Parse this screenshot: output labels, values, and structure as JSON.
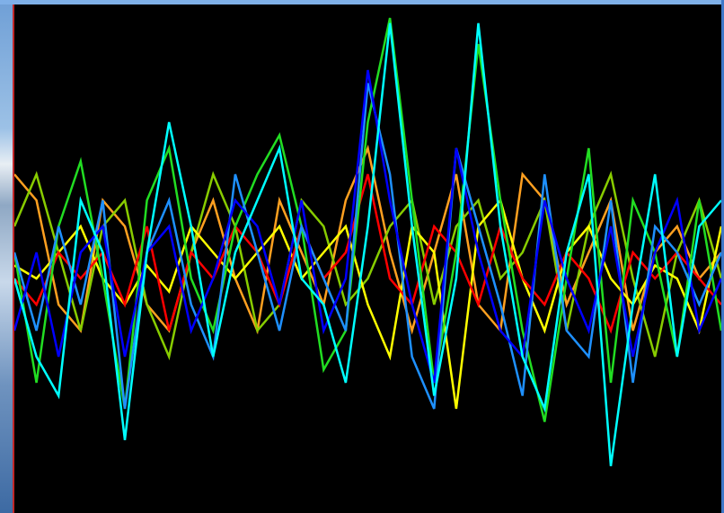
{
  "chart_data": {
    "type": "line",
    "ylim": [
      -1,
      1
    ],
    "series": [
      {
        "color": "#ffa020",
        "values": [
          0.4,
          0.3,
          -0.1,
          -0.2,
          0.3,
          0.2,
          -0.1,
          -0.2,
          0.1,
          0.3,
          0,
          -0.2,
          0.3,
          0.1,
          -0.1,
          0.3,
          0.5,
          0.1,
          -0.2,
          0.1,
          0.4,
          -0.1,
          -0.2,
          0.4,
          0.3,
          -0.1,
          0.1,
          0.3,
          -0.2,
          0.1,
          0.2,
          0,
          0.1
        ]
      },
      {
        "color": "#88cc00",
        "values": [
          0.2,
          0.4,
          0.1,
          -0.2,
          0.2,
          0.3,
          -0.1,
          -0.3,
          0.1,
          0.4,
          0.2,
          -0.2,
          -0.1,
          0.3,
          0.2,
          -0.1,
          0,
          0.2,
          0.3,
          -0.1,
          0.2,
          0.3,
          0,
          0.1,
          0.3,
          -0.2,
          0.2,
          0.4,
          0,
          -0.3,
          0.1,
          0.3,
          0
        ]
      },
      {
        "color": "#ffff00",
        "values": [
          0.05,
          0,
          0.1,
          0.2,
          0,
          -0.1,
          0.05,
          -0.05,
          0.2,
          0.1,
          0,
          0.1,
          0.2,
          0,
          0.1,
          0.2,
          -0.1,
          -0.3,
          0.2,
          0.1,
          -0.5,
          0.2,
          0.3,
          0,
          -0.2,
          0.1,
          0.2,
          0,
          -0.1,
          0.05,
          0,
          -0.2,
          0.2
        ]
      },
      {
        "color": "#ff0000",
        "values": [
          0,
          -0.1,
          0.1,
          0,
          0.1,
          -0.1,
          0.2,
          -0.2,
          0.1,
          0,
          0.2,
          0.1,
          -0.1,
          0.2,
          0,
          0.1,
          0.4,
          0,
          -0.1,
          0.2,
          0.1,
          -0.1,
          0.2,
          0,
          -0.1,
          0.1,
          0,
          -0.2,
          0.1,
          0,
          0.1,
          0,
          -0.1
        ]
      },
      {
        "color": "#22dd22",
        "values": [
          0.1,
          -0.4,
          0.2,
          0.45,
          0,
          -0.5,
          0.3,
          0.5,
          0,
          -0.2,
          0.2,
          0.4,
          0.55,
          0.2,
          -0.35,
          -0.2,
          0.6,
          1.0,
          0.3,
          -0.4,
          0.1,
          0.9,
          0.3,
          -0.2,
          -0.55,
          0,
          0.5,
          -0.4,
          0.3,
          0.1,
          -0.3,
          0.3,
          -0.2
        ]
      },
      {
        "color": "#1e90ff",
        "values": [
          0.1,
          -0.2,
          0.2,
          -0.1,
          0.3,
          -0.5,
          0.1,
          0.3,
          -0.1,
          -0.3,
          0.4,
          0.1,
          -0.2,
          0.2,
          0,
          -0.2,
          0.75,
          0.4,
          -0.3,
          -0.5,
          0.5,
          0.2,
          -0.1,
          -0.45,
          0.4,
          -0.2,
          -0.3,
          0.3,
          -0.4,
          0.2,
          0.1,
          -0.1,
          0.1
        ]
      },
      {
        "color": "#0000ff",
        "values": [
          -0.2,
          0.1,
          -0.3,
          0.1,
          0.2,
          -0.3,
          0.1,
          0.2,
          -0.2,
          0,
          0.3,
          0.2,
          -0.1,
          0.3,
          -0.2,
          0,
          0.8,
          0.3,
          -0.1,
          -0.4,
          0.5,
          0.1,
          -0.2,
          -0.3,
          0.3,
          0,
          -0.2,
          0.2,
          -0.3,
          0.1,
          0.3,
          -0.2,
          0
        ]
      },
      {
        "color": "#00ffff",
        "values": [
          0,
          -0.3,
          -0.45,
          0.3,
          0.1,
          -0.62,
          0.1,
          0.6,
          0.2,
          -0.3,
          0.1,
          0.3,
          0.5,
          0,
          -0.1,
          -0.4,
          0.2,
          0.98,
          0.2,
          -0.45,
          0,
          0.98,
          0.2,
          -0.3,
          -0.5,
          0.1,
          0.4,
          -0.72,
          -0.1,
          0.4,
          -0.3,
          0.2,
          0.3
        ]
      }
    ]
  }
}
